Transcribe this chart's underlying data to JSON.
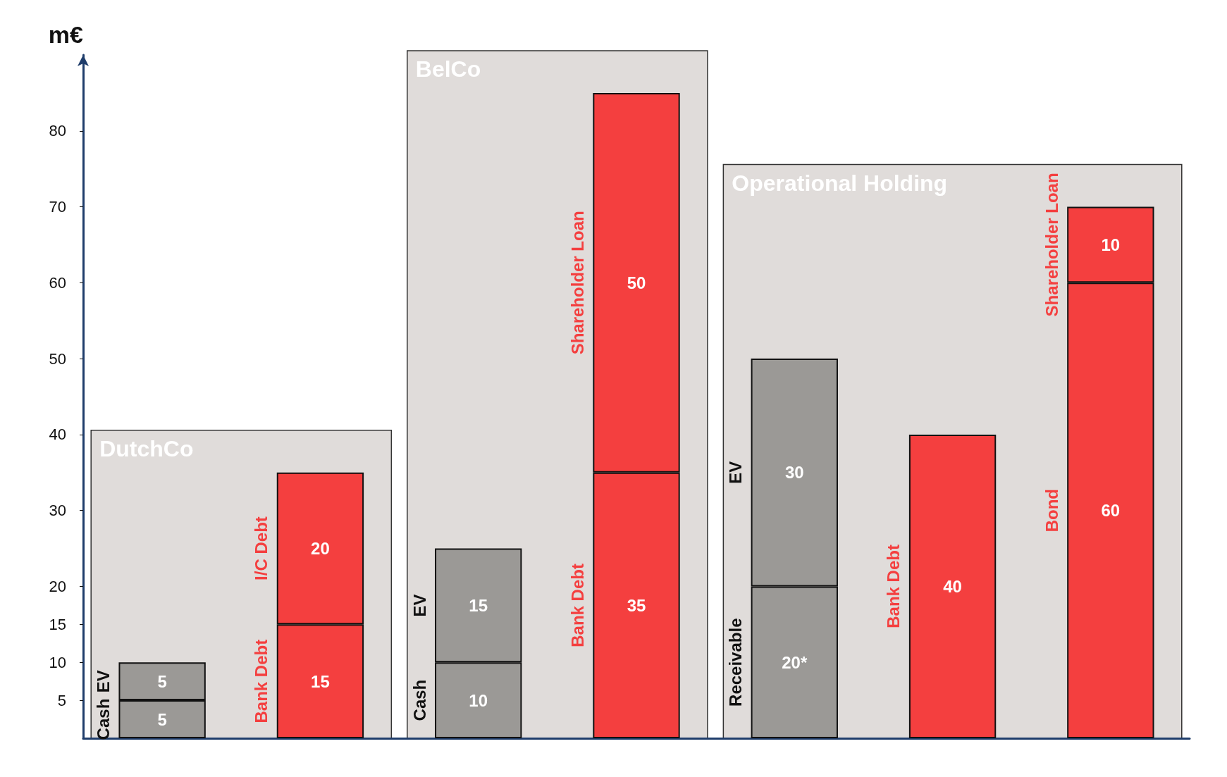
{
  "chart_data": {
    "type": "bar",
    "stacked": true,
    "ylabel": "m€",
    "categories": [
      null,
      null,
      null,
      null,
      null,
      null,
      null
    ],
    "series": [
      {
        "name": "Cash",
        "color": "#9b9996",
        "values": [
          5,
          null,
          10,
          null,
          null,
          null,
          null
        ]
      },
      {
        "name": "Receivable",
        "color": "#9b9996",
        "values": [
          null,
          null,
          null,
          null,
          20,
          null,
          null
        ],
        "value_labels": [
          null,
          null,
          null,
          null,
          "20*",
          null,
          null
        ]
      },
      {
        "name": "EV",
        "color": "#9b9996",
        "values": [
          5,
          null,
          15,
          null,
          30,
          null,
          null
        ]
      },
      {
        "name": "Bank Debt",
        "color": "#f43f3f",
        "values": [
          null,
          15,
          null,
          35,
          null,
          40,
          null
        ]
      },
      {
        "name": "Bond",
        "color": "#f43f3f",
        "values": [
          null,
          null,
          null,
          null,
          null,
          null,
          60
        ]
      },
      {
        "name": "I/C Debt",
        "color": "#f43f3f",
        "values": [
          null,
          20,
          null,
          null,
          null,
          null,
          null
        ]
      },
      {
        "name": "Shareholder Loan",
        "color": "#f43f3f",
        "values": [
          null,
          null,
          null,
          50,
          null,
          null,
          10
        ]
      }
    ],
    "annotations": [
      "DutchCo",
      "BelCo",
      "Operational Holding"
    ],
    "ylim": [
      0,
      90
    ],
    "yticks": [
      5,
      10,
      15,
      20,
      30,
      40,
      50,
      60,
      70,
      80
    ],
    "data_labels": true,
    "grid": false,
    "legend": false
  }
}
